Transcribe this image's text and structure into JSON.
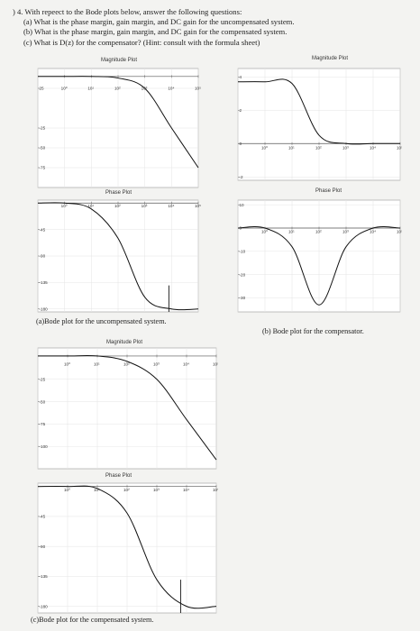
{
  "question": {
    "lead": ") 4.",
    "text": "With repeect to the Bode plots below, answer the following questions:",
    "a": "(a) What is the phase margin, gain margin, and DC gain for the uncompensated system.",
    "b": "(b) What is the phase margin, gain margin, and DC gain for the compensated system.",
    "c": "(c) What is D(z) for the compensator? (Hint: consult with the formula sheet)"
  },
  "figures": {
    "a_mag_title": "Magnitude Plot",
    "a_phase_title": "Phase Plot",
    "a_caption": "(a)Bode plot for the uncompensated system.",
    "b_mag_title": "Magnitude Plot",
    "b_phase_title": "Phase Plot",
    "b_caption": "(b) Bode plot for the compensator.",
    "c_mag_title": "Magnitude Plot",
    "c_phase_title": "Phase Plot",
    "c_caption": "(c)Bode plot for the compensated system."
  },
  "chart_data": [
    {
      "type": "line",
      "id": "a-mag",
      "x_ticks": [
        "10⁰",
        "10¹",
        "10²",
        "10³",
        "10⁴",
        "10⁵"
      ],
      "y_ticks": [
        "25",
        "-25",
        "-50",
        "-75"
      ],
      "x": [
        -1,
        0,
        1,
        2,
        3,
        4,
        5
      ],
      "series": [
        {
          "values": [
            40,
            40,
            40,
            38,
            25,
            -25,
            -75
          ]
        }
      ]
    },
    {
      "type": "line",
      "id": "a-phase",
      "x_ticks": [
        "10⁰",
        "10¹",
        "10²",
        "10³",
        "10⁴",
        "10⁵"
      ],
      "y_ticks": [
        "-45",
        "-90",
        "-135",
        "-180"
      ],
      "x": [
        -1,
        0,
        1,
        2,
        3,
        4,
        5
      ],
      "series": [
        {
          "values": [
            0,
            0,
            -10,
            -60,
            -160,
            -180,
            -180
          ]
        }
      ]
    },
    {
      "type": "line",
      "id": "b-mag",
      "x_ticks": [
        "10⁰",
        "10¹",
        "10²",
        "10³",
        "10⁴",
        "10⁵"
      ],
      "y_ticks": [
        "4",
        "2",
        "0",
        "-2"
      ],
      "x": [
        -1,
        0,
        1,
        2,
        3,
        4,
        5
      ],
      "series": [
        {
          "values": [
            3.7,
            3.7,
            3.6,
            0.5,
            0,
            0,
            0
          ]
        }
      ]
    },
    {
      "type": "line",
      "id": "b-phase",
      "x_ticks": [
        "10⁰",
        "10¹",
        "10²",
        "10³",
        "10⁴",
        "10⁵"
      ],
      "y_ticks": [
        "10",
        "0",
        "-10",
        "-20",
        "-30"
      ],
      "x": [
        -1,
        0,
        1,
        2,
        3,
        4,
        5
      ],
      "series": [
        {
          "values": [
            0,
            0,
            -8,
            -33,
            -8,
            0,
            0
          ]
        }
      ]
    },
    {
      "type": "line",
      "id": "c-mag",
      "x_ticks": [
        "10⁰",
        "10¹",
        "10²",
        "10³",
        "10⁴",
        "10⁵"
      ],
      "y_ticks": [
        "-25",
        "-50",
        "-75",
        "-100"
      ],
      "x": [
        -1,
        0,
        1,
        2,
        3,
        4,
        5
      ],
      "series": [
        {
          "values": [
            1,
            1,
            1,
            -5,
            -25,
            -70,
            -115
          ]
        }
      ]
    },
    {
      "type": "line",
      "id": "c-phase",
      "x_ticks": [
        "10⁰",
        "10¹",
        "10²",
        "10³",
        "10⁴",
        "10⁵"
      ],
      "y_ticks": [
        "-45",
        "-90",
        "-135",
        "-180"
      ],
      "x": [
        -1,
        0,
        1,
        2,
        3,
        4,
        5
      ],
      "series": [
        {
          "values": [
            0,
            0,
            -3,
            -40,
            -140,
            -180,
            -180
          ]
        }
      ]
    }
  ]
}
